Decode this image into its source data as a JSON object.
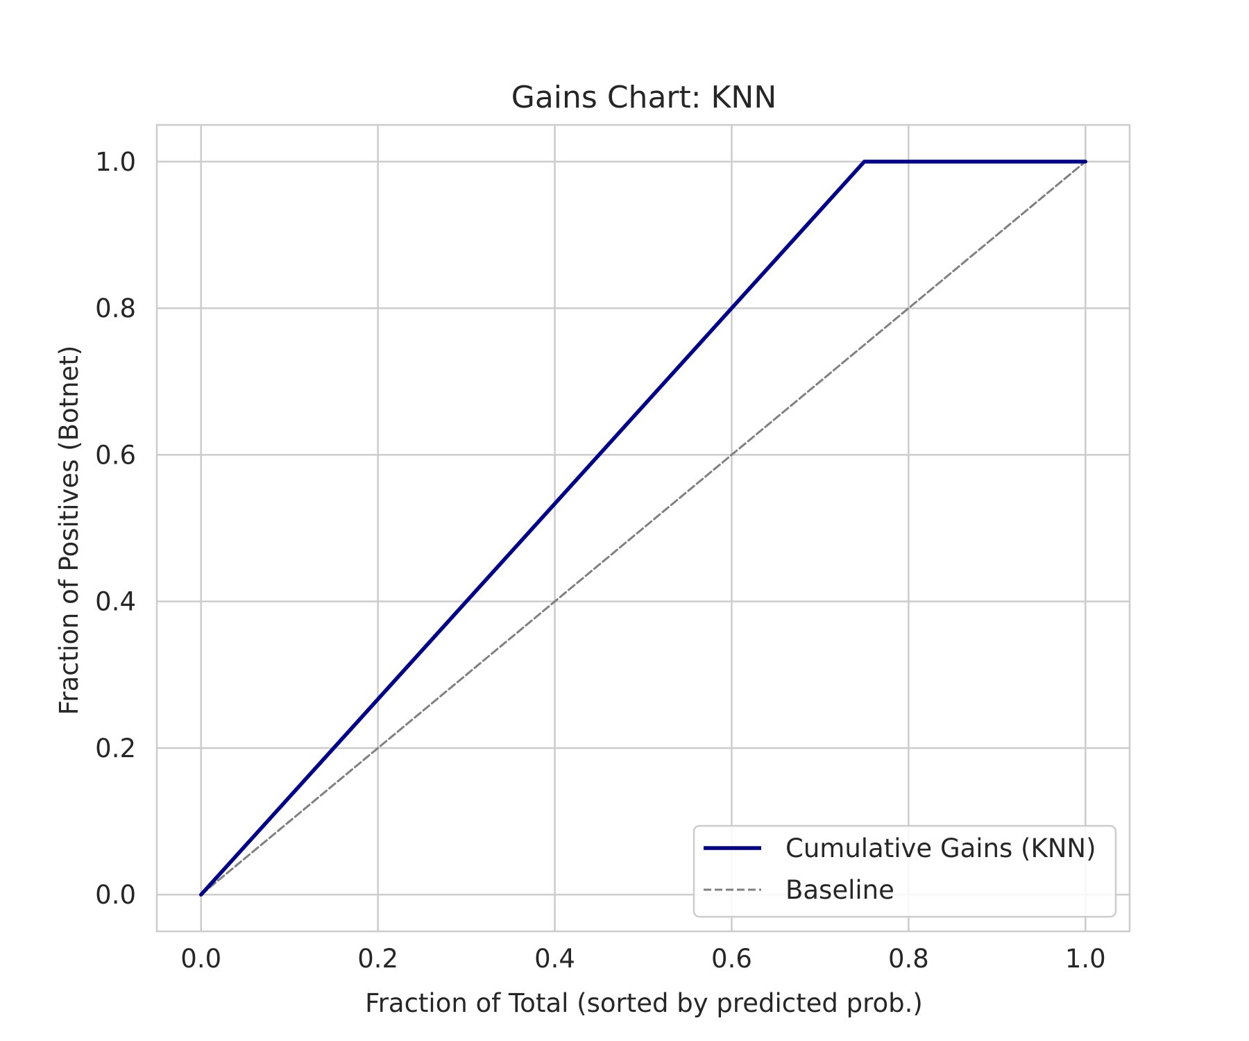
{
  "chart_data": {
    "type": "line",
    "title": "Gains Chart: KNN",
    "xlabel": "Fraction of Total (sorted by predicted prob.)",
    "ylabel": "Fraction of Positives (Botnet)",
    "xlim": [
      -0.05,
      1.05
    ],
    "ylim": [
      -0.05,
      1.05
    ],
    "xticks": [
      0.0,
      0.2,
      0.4,
      0.6,
      0.8,
      1.0
    ],
    "yticks": [
      0.0,
      0.2,
      0.4,
      0.6,
      0.8,
      1.0
    ],
    "xtick_labels": [
      "0.0",
      "0.2",
      "0.4",
      "0.6",
      "0.8",
      "1.0"
    ],
    "ytick_labels": [
      "0.0",
      "0.2",
      "0.4",
      "0.6",
      "0.8",
      "1.0"
    ],
    "grid": true,
    "legend_position": "bottom-right",
    "series": [
      {
        "name": "Cumulative Gains (KNN)",
        "color": "#00008b",
        "style": "solid",
        "x": [
          0.0,
          0.75,
          1.0
        ],
        "y": [
          0.0,
          1.0,
          1.0
        ]
      },
      {
        "name": "Baseline",
        "color": "#808080",
        "style": "dashed",
        "x": [
          0.0,
          1.0
        ],
        "y": [
          0.0,
          1.0
        ]
      }
    ],
    "colors": {
      "grid": "#cccccc",
      "spine": "#cccccc",
      "text": "#262626",
      "background": "#ffffff"
    }
  }
}
